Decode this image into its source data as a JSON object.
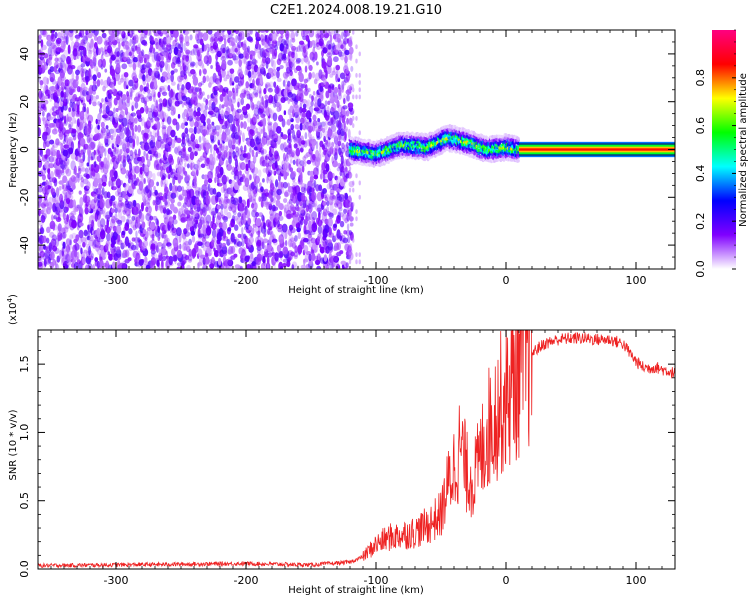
{
  "figure": {
    "title": "C2E1.2024.008.19.21.G10"
  },
  "chart_data": [
    {
      "type": "heatmap",
      "title": "C2E1.2024.008.19.21.G10",
      "xlabel": "Height of straight line (km)",
      "ylabel": "Frequency (Hz)",
      "xlim": [
        -360,
        130
      ],
      "ylim": [
        -50,
        50
      ],
      "x_ticks": [
        -300,
        -200,
        -100,
        0,
        100
      ],
      "x_tick_labels": [
        "-300",
        "-200",
        "-100",
        "0",
        "100"
      ],
      "y_ticks": [
        -40,
        -20,
        0,
        20,
        40
      ],
      "y_tick_labels": [
        "-40",
        "-20",
        "0",
        "20",
        "40"
      ],
      "colorbar": {
        "label": "Normalized spectral amplitude",
        "range": [
          0,
          1
        ],
        "ticks": [
          0.0,
          0.2,
          0.4,
          0.6,
          0.8
        ],
        "tick_labels": [
          "0.0",
          "0.2",
          "0.4",
          "0.6",
          "0.8"
        ],
        "colors": [
          "#ffffff",
          "#8000ff",
          "#0000ff",
          "#00ffff",
          "#00ff00",
          "#ffff00",
          "#ff0000",
          "#ff0080"
        ]
      },
      "regions": [
        {
          "x_range": [
            -360,
            -120
          ],
          "description": "broadband noise",
          "frequency_range": [
            -50,
            50
          ],
          "amplitude": 0.1
        },
        {
          "x_range": [
            -120,
            10
          ],
          "description": "wandering signal",
          "frequency_center": [
            [
              -120,
              0
            ],
            [
              -100,
              -2
            ],
            [
              -80,
              2
            ],
            [
              -60,
              1
            ],
            [
              -45,
              5
            ],
            [
              -30,
              3
            ],
            [
              -15,
              0
            ],
            [
              0,
              1
            ],
            [
              10,
              0
            ]
          ],
          "amplitude": 0.5
        },
        {
          "x_range": [
            10,
            130
          ],
          "description": "steady carrier",
          "frequency_center": 0,
          "amplitude": 0.85
        }
      ]
    },
    {
      "type": "line",
      "xlabel": "Height of straight line (km)",
      "ylabel": "SNR (10 * v/v)",
      "y_multiplier_label": "(x10",
      "y_multiplier_exp": "4",
      "y_multiplier_close": ")",
      "xlim": [
        -360,
        130
      ],
      "ylim": [
        0,
        17500
      ],
      "x_ticks": [
        -300,
        -200,
        -100,
        0,
        100
      ],
      "x_tick_labels": [
        "-300",
        "-200",
        "-100",
        "0",
        "100"
      ],
      "y_ticks": [
        0,
        5000,
        10000,
        15000
      ],
      "y_tick_labels": [
        "0.0",
        "0.5",
        "1.0",
        "1.5"
      ],
      "series": [
        {
          "color": "#ee2222",
          "x": [
            -360,
            -300,
            -250,
            -200,
            -150,
            -120,
            -110,
            -100,
            -90,
            -80,
            -70,
            -60,
            -50,
            -45,
            -40,
            -35,
            -30,
            -25,
            -20,
            -15,
            -10,
            -5,
            0,
            5,
            10,
            15,
            20,
            25,
            30,
            40,
            50,
            60,
            70,
            80,
            90,
            100,
            105,
            110,
            115,
            120,
            125,
            130
          ],
          "y": [
            250,
            300,
            350,
            400,
            300,
            500,
            900,
            1800,
            2300,
            2500,
            2700,
            3200,
            4000,
            6000,
            7500,
            9000,
            7000,
            6500,
            8000,
            10000,
            11000,
            12000,
            12500,
            13500,
            14500,
            15500,
            15800,
            16200,
            16500,
            16800,
            16900,
            16900,
            16800,
            16800,
            16500,
            15200,
            14800,
            14700,
            14800,
            14600,
            14500,
            14300
          ]
        }
      ]
    }
  ]
}
